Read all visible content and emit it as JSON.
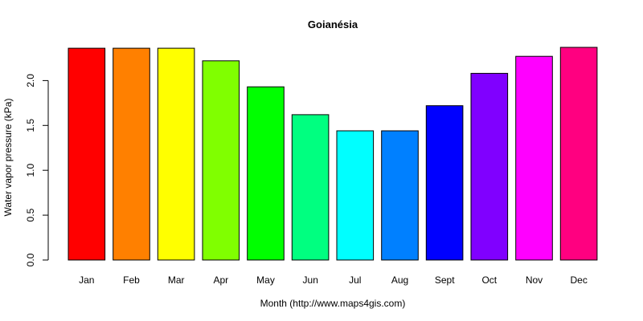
{
  "chart_data": {
    "type": "bar",
    "title": "Goianésia",
    "xlabel": "Month (http://www.maps4gis.com)",
    "ylabel": "Water vapor pressure (kPa)",
    "categories": [
      "Jan",
      "Feb",
      "Mar",
      "Apr",
      "May",
      "Jun",
      "Jul",
      "Aug",
      "Sept",
      "Oct",
      "Nov",
      "Dec"
    ],
    "values": [
      2.36,
      2.36,
      2.36,
      2.22,
      1.93,
      1.62,
      1.44,
      1.44,
      1.72,
      2.08,
      2.27,
      2.37
    ],
    "colors": [
      "#FF0000",
      "#FF8000",
      "#FFFF00",
      "#80FF00",
      "#00FF00",
      "#00FF80",
      "#00FFFF",
      "#0080FF",
      "#0000FF",
      "#8000FF",
      "#FF00FF",
      "#FF0080"
    ],
    "ylim": [
      0,
      2.37
    ],
    "yticks": [
      0.0,
      0.5,
      1.0,
      1.5,
      2.0
    ],
    "ytick_labels": [
      "0.0",
      "0.5",
      "1.0",
      "1.5",
      "2.0"
    ],
    "grid": false,
    "legend": "none"
  }
}
